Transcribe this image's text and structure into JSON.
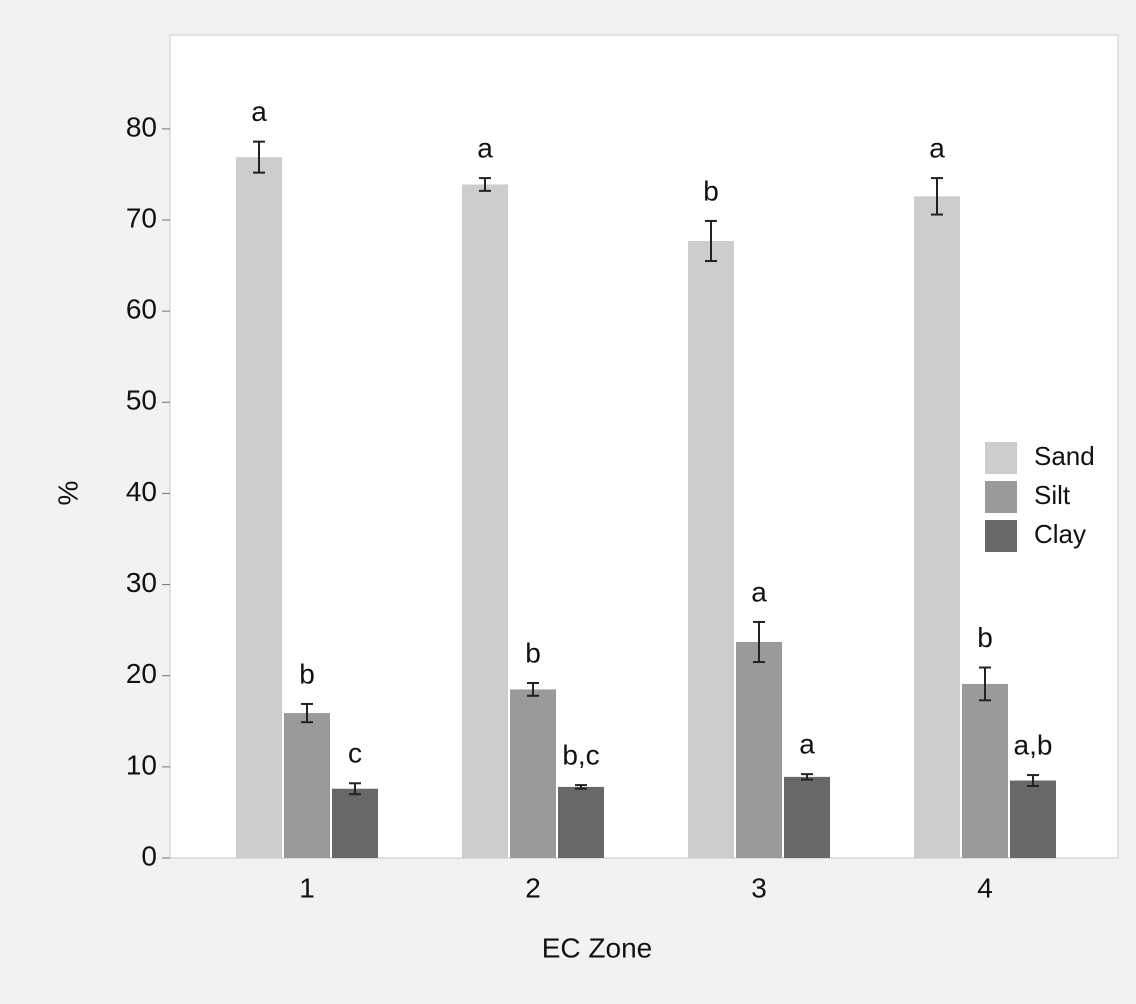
{
  "chart_data": {
    "type": "bar",
    "x_label": "EC Zone",
    "y_label": "%",
    "categories": [
      "1",
      "2",
      "3",
      "4"
    ],
    "series": [
      {
        "name": "Sand",
        "color": "#cdcdcd",
        "values": [
          76.9,
          73.9,
          67.7,
          72.6
        ],
        "errors": [
          1.7,
          0.7,
          2.2,
          2.0
        ],
        "labels": [
          "a",
          "a",
          "b",
          "a"
        ]
      },
      {
        "name": "Silt",
        "color": "#9a9a9a",
        "values": [
          15.9,
          18.5,
          23.7,
          19.1
        ],
        "errors": [
          1.0,
          0.7,
          2.2,
          1.8
        ],
        "labels": [
          "b",
          "b",
          "a",
          "b"
        ]
      },
      {
        "name": "Clay",
        "color": "#686868",
        "values": [
          7.6,
          7.8,
          8.9,
          8.5
        ],
        "errors": [
          0.6,
          0.2,
          0.3,
          0.6
        ],
        "labels": [
          "c",
          "b,c",
          "a",
          "a,b"
        ]
      }
    ],
    "ylim": [
      0,
      90.3
    ],
    "yticks": [
      0,
      10,
      20,
      30,
      40,
      50,
      60,
      70,
      80
    ],
    "legend": "right"
  }
}
